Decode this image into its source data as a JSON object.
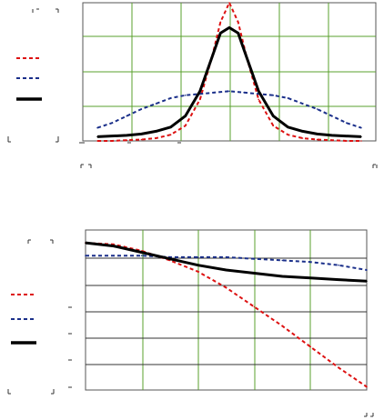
{
  "chart_data": [
    {
      "type": "line",
      "xlim": [
        -1,
        1
      ],
      "ylim": [
        0,
        1
      ],
      "grid": true,
      "legend_position": "left",
      "series": [
        {
          "color": "#dd1111",
          "style": "dashed",
          "points": [
            [
              -0.9,
              0.0
            ],
            [
              -0.8,
              0.0
            ],
            [
              -0.7,
              0.005
            ],
            [
              -0.6,
              0.01
            ],
            [
              -0.5,
              0.02
            ],
            [
              -0.4,
              0.045
            ],
            [
              -0.3,
              0.11
            ],
            [
              -0.2,
              0.3
            ],
            [
              -0.12,
              0.6
            ],
            [
              -0.06,
              0.86
            ],
            [
              0.0,
              1.0
            ],
            [
              0.06,
              0.86
            ],
            [
              0.12,
              0.6
            ],
            [
              0.2,
              0.3
            ],
            [
              0.3,
              0.11
            ],
            [
              0.4,
              0.045
            ],
            [
              0.5,
              0.02
            ],
            [
              0.6,
              0.01
            ],
            [
              0.7,
              0.005
            ],
            [
              0.8,
              0.0
            ],
            [
              0.9,
              0.0
            ]
          ]
        },
        {
          "color": "#1a2f8a",
          "style": "dashed",
          "points": [
            [
              -0.9,
              0.095
            ],
            [
              -0.8,
              0.13
            ],
            [
              -0.7,
              0.18
            ],
            [
              -0.6,
              0.23
            ],
            [
              -0.5,
              0.27
            ],
            [
              -0.4,
              0.31
            ],
            [
              -0.3,
              0.33
            ],
            [
              -0.2,
              0.34
            ],
            [
              -0.1,
              0.35
            ],
            [
              0.0,
              0.36
            ],
            [
              0.1,
              0.35
            ],
            [
              0.2,
              0.34
            ],
            [
              0.3,
              0.33
            ],
            [
              0.4,
              0.31
            ],
            [
              0.5,
              0.27
            ],
            [
              0.6,
              0.23
            ],
            [
              0.7,
              0.18
            ],
            [
              0.8,
              0.13
            ],
            [
              0.9,
              0.095
            ]
          ]
        },
        {
          "color": "#000000",
          "style": "solid",
          "points": [
            [
              -0.9,
              0.03
            ],
            [
              -0.7,
              0.04
            ],
            [
              -0.6,
              0.05
            ],
            [
              -0.5,
              0.07
            ],
            [
              -0.4,
              0.1
            ],
            [
              -0.3,
              0.18
            ],
            [
              -0.2,
              0.36
            ],
            [
              -0.12,
              0.6
            ],
            [
              -0.06,
              0.78
            ],
            [
              0.0,
              0.82
            ],
            [
              0.06,
              0.78
            ],
            [
              0.12,
              0.6
            ],
            [
              0.2,
              0.36
            ],
            [
              0.3,
              0.18
            ],
            [
              0.4,
              0.1
            ],
            [
              0.5,
              0.07
            ],
            [
              0.6,
              0.05
            ],
            [
              0.7,
              0.04
            ],
            [
              0.9,
              0.03
            ]
          ]
        }
      ]
    },
    {
      "type": "line",
      "xlim": [
        0,
        1
      ],
      "ylim": [
        0,
        1
      ],
      "grid": true,
      "legend_position": "left",
      "series": [
        {
          "color": "#dd1111",
          "style": "dashed",
          "points": [
            [
              0.0,
              0.92
            ],
            [
              0.1,
              0.91
            ],
            [
              0.2,
              0.87
            ],
            [
              0.3,
              0.81
            ],
            [
              0.4,
              0.74
            ],
            [
              0.5,
              0.64
            ],
            [
              0.6,
              0.52
            ],
            [
              0.7,
              0.4
            ],
            [
              0.8,
              0.27
            ],
            [
              0.9,
              0.14
            ],
            [
              1.0,
              0.02
            ]
          ]
        },
        {
          "color": "#1a2f8a",
          "style": "dashed",
          "points": [
            [
              0.0,
              0.84
            ],
            [
              0.1,
              0.84
            ],
            [
              0.2,
              0.84
            ],
            [
              0.3,
              0.83
            ],
            [
              0.4,
              0.83
            ],
            [
              0.5,
              0.83
            ],
            [
              0.6,
              0.82
            ],
            [
              0.7,
              0.81
            ],
            [
              0.8,
              0.8
            ],
            [
              0.9,
              0.78
            ],
            [
              1.0,
              0.75
            ]
          ]
        },
        {
          "color": "#000000",
          "style": "solid",
          "points": [
            [
              0.0,
              0.92
            ],
            [
              0.1,
              0.9
            ],
            [
              0.2,
              0.86
            ],
            [
              0.3,
              0.82
            ],
            [
              0.4,
              0.78
            ],
            [
              0.5,
              0.75
            ],
            [
              0.6,
              0.73
            ],
            [
              0.7,
              0.71
            ],
            [
              0.8,
              0.7
            ],
            [
              0.9,
              0.69
            ],
            [
              1.0,
              0.68
            ]
          ]
        }
      ]
    }
  ]
}
